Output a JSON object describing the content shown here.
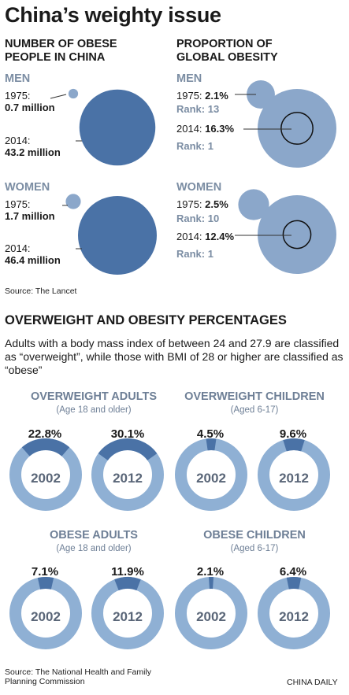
{
  "title": "China’s weighty issue",
  "colors": {
    "dark_blue": "#4a72a6",
    "light_blue": "#8ba7ca",
    "ring_light": "#8fb0d4",
    "ring_dark": "#4a72a6",
    "gray_text": "#7b8da3"
  },
  "left_heading": [
    "NUMBER OF OBESE",
    "PEOPLE IN CHINA"
  ],
  "right_heading": [
    "PROPORTION OF",
    "GLOBAL OBESITY"
  ],
  "men_label": "MEN",
  "women_label": "WOMEN",
  "obese_people": {
    "men": {
      "y1975": "1975:",
      "v1975": "0.7 million",
      "y2014": "2014:",
      "v2014": "43.2 million"
    },
    "women": {
      "y1975": "1975:",
      "v1975": "1.7 million",
      "y2014": "2014:",
      "v2014": "46.4 million"
    }
  },
  "global_share": {
    "men": {
      "y1975": "1975:",
      "p1975": "2.1%",
      "r1975": "Rank: 13",
      "y2014": "2014:",
      "p2014": "16.3%",
      "r2014": "Rank: 1"
    },
    "women": {
      "y1975": "1975:",
      "p1975": "2.5%",
      "r1975": "Rank: 10",
      "y2014": "2014:",
      "p2014": "12.4%",
      "r2014": "Rank: 1"
    }
  },
  "source_top": "Source: The Lancet",
  "section_heading": "OVERWEIGHT AND OBESITY PERCENTAGES",
  "description": "Adults with a body mass index of between 24 and 27.9 are classified as “overweight”, while those with BMI of 28 or higher are classified as “obese”",
  "groups": [
    {
      "heading": "OVERWEIGHT ADULTS",
      "sub": "(Age 18 and older)",
      "items": [
        {
          "year": "2002",
          "pct": "22.8%"
        },
        {
          "year": "2012",
          "pct": "30.1%"
        }
      ]
    },
    {
      "heading": "OVERWEIGHT CHILDREN",
      "sub": "(Aged 6-17)",
      "items": [
        {
          "year": "2002",
          "pct": "4.5%"
        },
        {
          "year": "2012",
          "pct": "9.6%"
        }
      ]
    },
    {
      "heading": "OBESE ADULTS",
      "sub": "(Age 18 and older)",
      "items": [
        {
          "year": "2002",
          "pct": "7.1%"
        },
        {
          "year": "2012",
          "pct": "11.9%"
        }
      ]
    },
    {
      "heading": "OBESE CHILDREN",
      "sub": "(Aged 6-17)",
      "items": [
        {
          "year": "2002",
          "pct": "2.1%"
        },
        {
          "year": "2012",
          "pct": "6.4%"
        }
      ]
    }
  ],
  "source_bottom": [
    "Source: The National Health and Family",
    "Planning Commission"
  ],
  "credit": "CHINA DAILY",
  "chart_data": [
    {
      "type": "bubble",
      "series": [
        {
          "name": "MEN",
          "x": [
            "1975",
            "2014"
          ],
          "values": [
            0.7,
            43.2
          ]
        },
        {
          "name": "WOMEN",
          "x": [
            "1975",
            "2014"
          ],
          "values": [
            1.7,
            46.4
          ]
        }
      ]
    },
    {
      "type": "bubble",
      "series": [
        {
          "name": "MEN",
          "x": [
            "1975",
            "2014"
          ],
          "values": [
            2.1,
            16.3
          ]
        },
        {
          "name": "WOMEN",
          "x": [
            "1975",
            "2014"
          ],
          "values": [
            2.5,
            12.4
          ]
        }
      ]
    },
    {
      "type": "pie",
      "title": "OVERWEIGHT ADULTS",
      "categories": [
        "2002",
        "2012"
      ],
      "values": [
        22.8,
        30.1
      ]
    },
    {
      "type": "pie",
      "title": "OVERWEIGHT CHILDREN",
      "categories": [
        "2002",
        "2012"
      ],
      "values": [
        4.5,
        9.6
      ]
    },
    {
      "type": "pie",
      "title": "OBESE ADULTS",
      "categories": [
        "2002",
        "2012"
      ],
      "values": [
        7.1,
        11.9
      ]
    },
    {
      "type": "pie",
      "title": "OBESE CHILDREN",
      "categories": [
        "2002",
        "2012"
      ],
      "values": [
        2.1,
        6.4
      ]
    }
  ]
}
